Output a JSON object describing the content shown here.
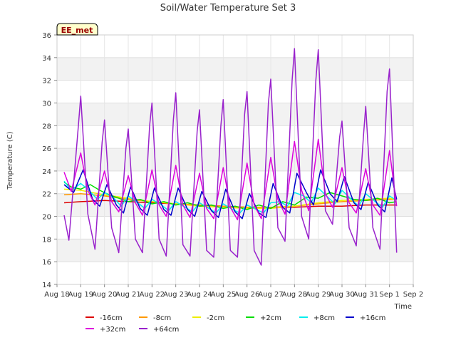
{
  "chart_data": {
    "type": "line",
    "title": "Soil/Water Temperature Set 3",
    "xlabel": "Time",
    "ylabel": "Temperature (C)",
    "ylim": [
      14,
      36
    ],
    "y_ticks": [
      14,
      16,
      18,
      20,
      22,
      24,
      26,
      28,
      30,
      32,
      34,
      36
    ],
    "x_range": [
      18,
      33
    ],
    "x_ticks": [
      {
        "x": 18,
        "label": "Aug 18"
      },
      {
        "x": 19,
        "label": "Aug 19"
      },
      {
        "x": 20,
        "label": "Aug 20"
      },
      {
        "x": 21,
        "label": "Aug 21"
      },
      {
        "x": 22,
        "label": "Aug 22"
      },
      {
        "x": 23,
        "label": "Aug 23"
      },
      {
        "x": 24,
        "label": "Aug 24"
      },
      {
        "x": 25,
        "label": "Aug 25"
      },
      {
        "x": 26,
        "label": "Aug 26"
      },
      {
        "x": 27,
        "label": "Aug 27"
      },
      {
        "x": 28,
        "label": "Aug 28"
      },
      {
        "x": 29,
        "label": "Aug 29"
      },
      {
        "x": 30,
        "label": "Aug 30"
      },
      {
        "x": 31,
        "label": "Aug 31"
      },
      {
        "x": 32,
        "label": "Sep 1"
      },
      {
        "x": 33,
        "label": "Sep 2"
      }
    ],
    "grid": true,
    "banded_background": true,
    "legend_position": "bottom",
    "annotation": "EE_met",
    "series": [
      {
        "name": "-16cm",
        "color": "#dd0000",
        "x": [
          18.3,
          19.0,
          20.0,
          21.0,
          22.0,
          23.0,
          24.0,
          25.0,
          26.0,
          27.0,
          28.0,
          29.0,
          30.0,
          31.0,
          32.0,
          32.3
        ],
        "y": [
          21.2,
          21.3,
          21.4,
          21.3,
          21.2,
          21.1,
          21.0,
          20.9,
          20.8,
          20.8,
          20.8,
          20.9,
          20.9,
          21.0,
          21.0,
          21.0
        ]
      },
      {
        "name": "-8cm",
        "color": "#ff9900",
        "x": [
          18.3,
          19.0,
          20.0,
          21.0,
          22.0,
          23.0,
          24.0,
          25.0,
          26.0,
          27.0,
          28.0,
          29.0,
          30.0,
          31.0,
          32.0,
          32.3
        ],
        "y": [
          21.9,
          22.0,
          21.8,
          21.5,
          21.3,
          21.1,
          21.0,
          20.9,
          20.8,
          20.8,
          20.9,
          21.1,
          21.3,
          21.4,
          21.5,
          21.5
        ]
      },
      {
        "name": "-2cm",
        "color": "#eeee00",
        "x": [
          18.3,
          19.0,
          20.0,
          21.0,
          22.0,
          23.0,
          24.0,
          25.0,
          26.0,
          27.0,
          28.0,
          29.0,
          30.0,
          31.0,
          32.0,
          32.3
        ],
        "y": [
          22.4,
          22.3,
          21.9,
          21.6,
          21.3,
          21.1,
          20.9,
          20.8,
          20.7,
          20.7,
          20.9,
          21.2,
          21.4,
          21.5,
          21.6,
          21.5
        ]
      },
      {
        "name": "+2cm",
        "color": "#00dd00",
        "x": [
          18.3,
          18.6,
          19.0,
          19.4,
          19.8,
          20.2,
          20.6,
          21.0,
          21.5,
          22.0,
          22.5,
          23.0,
          23.5,
          24.0,
          24.5,
          25.0,
          25.5,
          26.0,
          26.5,
          27.0,
          27.5,
          28.0,
          28.5,
          29.0,
          29.5,
          30.0,
          30.5,
          31.0,
          31.5,
          32.0,
          32.3
        ],
        "y": [
          23.0,
          22.6,
          22.4,
          22.8,
          22.3,
          21.9,
          21.6,
          21.3,
          21.5,
          21.1,
          21.3,
          21.0,
          21.2,
          20.9,
          21.0,
          20.7,
          20.9,
          20.6,
          21.0,
          20.7,
          21.3,
          21.0,
          21.7,
          21.6,
          22.1,
          21.8,
          21.5,
          21.4,
          21.6,
          21.2,
          21.3
        ]
      },
      {
        "name": "+8cm",
        "color": "#00eeee",
        "x": [
          18.3,
          18.6,
          19.0,
          19.3,
          19.7,
          20.0,
          20.4,
          20.7,
          21.0,
          21.4,
          21.7,
          22.0,
          22.4,
          22.7,
          23.0,
          23.4,
          23.7,
          24.0,
          24.4,
          24.7,
          25.0,
          25.4,
          25.7,
          26.0,
          26.4,
          26.7,
          27.0,
          27.4,
          27.7,
          28.0,
          28.4,
          28.7,
          29.0,
          29.4,
          29.7,
          30.0,
          30.4,
          30.7,
          31.0,
          31.4,
          31.7,
          32.0,
          32.3
        ],
        "y": [
          23.1,
          22.3,
          22.9,
          22.4,
          21.5,
          22.1,
          21.6,
          20.9,
          21.8,
          21.2,
          20.7,
          21.5,
          21.0,
          20.5,
          21.3,
          20.8,
          20.4,
          21.2,
          20.7,
          20.3,
          21.1,
          20.6,
          20.3,
          21.0,
          20.6,
          20.3,
          21.2,
          21.3,
          20.9,
          22.1,
          21.8,
          21.2,
          22.5,
          21.7,
          21.1,
          22.3,
          21.5,
          20.9,
          22.0,
          21.3,
          20.8,
          21.8,
          21.4
        ]
      },
      {
        "name": "+16cm",
        "color": "#0000cc",
        "x": [
          18.3,
          18.7,
          19.1,
          19.5,
          19.8,
          20.1,
          20.5,
          20.8,
          21.1,
          21.5,
          21.8,
          22.1,
          22.5,
          22.8,
          23.1,
          23.5,
          23.8,
          24.1,
          24.5,
          24.8,
          25.1,
          25.5,
          25.8,
          26.1,
          26.5,
          26.8,
          27.1,
          27.5,
          27.8,
          28.1,
          28.5,
          28.8,
          29.1,
          29.5,
          29.8,
          30.1,
          30.5,
          30.8,
          31.1,
          31.5,
          31.8,
          32.1,
          32.3
        ],
        "y": [
          22.8,
          22.1,
          24.1,
          21.5,
          20.9,
          22.8,
          21.0,
          20.3,
          22.6,
          20.7,
          20.1,
          22.5,
          20.6,
          20.1,
          22.5,
          20.6,
          20.0,
          22.2,
          20.5,
          19.9,
          22.4,
          20.4,
          19.8,
          22.0,
          20.3,
          19.9,
          22.9,
          20.8,
          20.3,
          23.8,
          22.1,
          21.0,
          24.1,
          22.0,
          21.3,
          23.5,
          21.2,
          20.6,
          23.0,
          21.0,
          20.4,
          23.4,
          21.5
        ]
      },
      {
        "name": "+32cm",
        "color": "#dd00dd",
        "x": [
          18.3,
          18.6,
          19.0,
          19.3,
          19.6,
          20.0,
          20.3,
          20.6,
          21.0,
          21.3,
          21.6,
          22.0,
          22.3,
          22.6,
          23.0,
          23.3,
          23.6,
          24.0,
          24.3,
          24.6,
          25.0,
          25.3,
          25.6,
          26.0,
          26.3,
          26.6,
          27.0,
          27.3,
          27.6,
          28.0,
          28.3,
          28.6,
          29.0,
          29.3,
          29.6,
          30.0,
          30.3,
          30.6,
          31.0,
          31.3,
          31.6,
          32.0,
          32.3
        ],
        "y": [
          23.9,
          22.2,
          25.6,
          22.3,
          21.0,
          24.0,
          21.3,
          20.4,
          23.6,
          21.2,
          20.1,
          24.1,
          21.0,
          20.0,
          24.5,
          21.0,
          19.9,
          23.8,
          20.7,
          19.8,
          24.3,
          20.8,
          19.7,
          24.7,
          21.0,
          19.8,
          25.2,
          21.5,
          20.2,
          26.6,
          22.3,
          20.5,
          26.8,
          22.0,
          20.8,
          24.3,
          21.2,
          20.3,
          24.2,
          21.0,
          20.1,
          25.8,
          20.9
        ]
      },
      {
        "name": "+64cm",
        "color": "#9922cc",
        "x": [
          18.3,
          18.5,
          18.9,
          19.0,
          19.3,
          19.6,
          19.9,
          20.0,
          20.3,
          20.6,
          20.9,
          21.0,
          21.3,
          21.6,
          21.9,
          22.0,
          22.3,
          22.6,
          22.9,
          23.0,
          23.3,
          23.6,
          23.9,
          24.0,
          24.3,
          24.6,
          24.9,
          25.0,
          25.3,
          25.6,
          25.9,
          26.0,
          26.3,
          26.6,
          26.9,
          27.0,
          27.3,
          27.6,
          27.9,
          28.0,
          28.3,
          28.6,
          28.9,
          29.0,
          29.3,
          29.6,
          29.9,
          30.0,
          30.3,
          30.6,
          30.9,
          31.0,
          31.3,
          31.6,
          31.9,
          32.0,
          32.3
        ],
        "y": [
          20.1,
          17.9,
          28.0,
          30.6,
          20.2,
          17.1,
          26.5,
          28.5,
          19.0,
          16.8,
          26.0,
          27.7,
          18.0,
          16.8,
          28.0,
          30.0,
          18.0,
          16.5,
          28.5,
          30.9,
          17.5,
          16.5,
          27.5,
          29.4,
          17.0,
          16.4,
          28.0,
          30.3,
          17.0,
          16.4,
          29.0,
          31.0,
          17.0,
          15.7,
          30.0,
          32.1,
          19.0,
          17.8,
          32.0,
          34.8,
          20.0,
          18.0,
          32.0,
          34.7,
          20.5,
          19.3,
          27.0,
          28.4,
          19.0,
          17.4,
          27.0,
          29.7,
          19.0,
          17.1,
          31.0,
          33.0,
          16.8
        ]
      }
    ]
  }
}
